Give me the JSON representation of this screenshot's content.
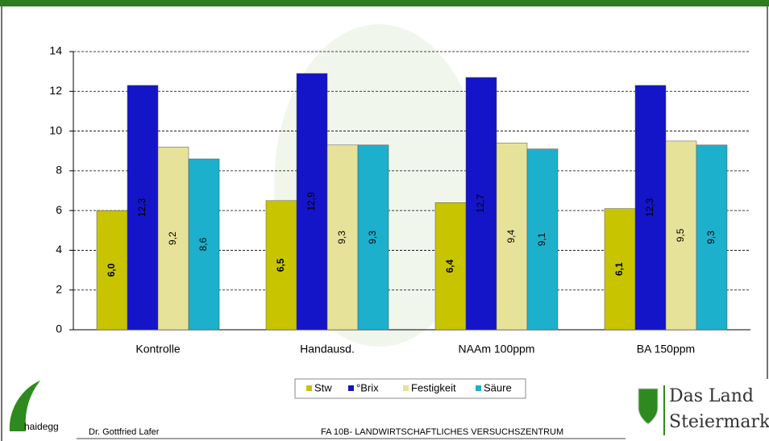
{
  "chart_data": {
    "type": "bar",
    "categories": [
      "Kontrolle",
      "Handausd.",
      "NAAm 100ppm",
      "BA 150ppm"
    ],
    "series": [
      {
        "name": "Stw",
        "color": "#c8c400",
        "values": [
          6.0,
          6.5,
          6.4,
          6.1
        ],
        "value_labels": [
          "6,0",
          "6,5",
          "6,4",
          "6,1"
        ]
      },
      {
        "name": "°Brix",
        "color": "#1414c8",
        "values": [
          12.3,
          12.9,
          12.7,
          12.3
        ],
        "value_labels": [
          "12,3",
          "12,9",
          "12,7",
          "12,3"
        ]
      },
      {
        "name": "Festigkeit",
        "color": "#e6e29a",
        "values": [
          9.2,
          9.3,
          9.4,
          9.5
        ],
        "value_labels": [
          "9,2",
          "9,3",
          "9,4",
          "9,5"
        ]
      },
      {
        "name": "Säure",
        "color": "#1cb0cc",
        "values": [
          8.6,
          9.3,
          9.1,
          9.3
        ],
        "value_labels": [
          "8,6",
          "9,3",
          "9,1",
          "9,3"
        ]
      }
    ],
    "ylim": [
      0,
      14
    ],
    "yticks": [
      0,
      2,
      4,
      6,
      8,
      10,
      12,
      14
    ],
    "grid": true,
    "legend": "bottom"
  },
  "footer": {
    "logo_left": "haidegg",
    "author": "Dr. Gottfried Lafer",
    "institution": "FA 10B- LANDWIRTSCHAFTLICHES VERSUCHSZENTRUM",
    "logo_right_line1": "Das Land",
    "logo_right_line2": "Steiermark"
  }
}
